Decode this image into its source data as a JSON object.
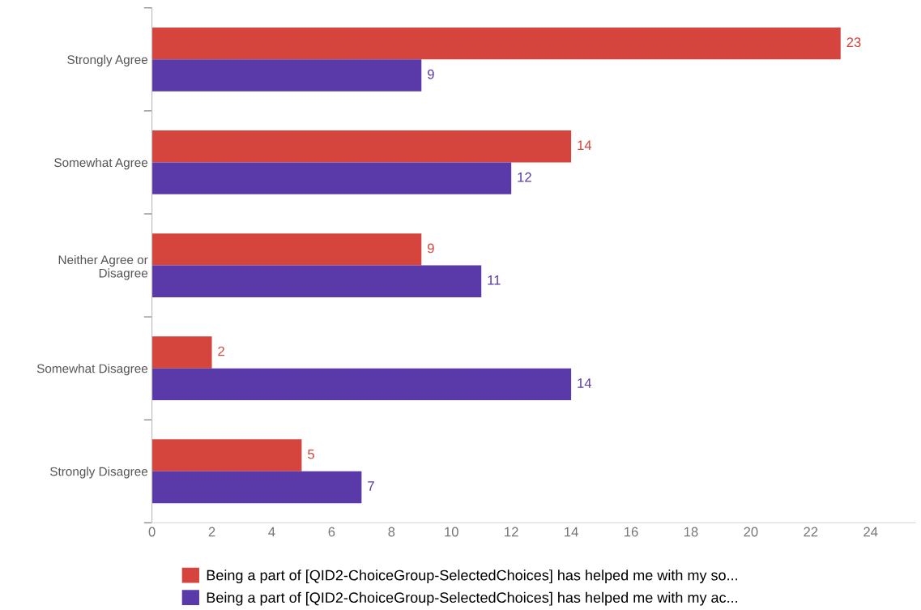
{
  "chart_data": {
    "type": "bar",
    "orientation": "horizontal",
    "categories": [
      "Strongly Agree",
      "Somewhat Agree",
      "Neither Agree or\nDisagree",
      "Somewhat Disagree",
      "Strongly Disagree"
    ],
    "series": [
      {
        "name": "Being a part of [QID2-ChoiceGroup-SelectedChoices] has helped me with my so...",
        "color": "#d5453d",
        "values": [
          23,
          14,
          9,
          2,
          5
        ]
      },
      {
        "name": "Being a part of [QID2-ChoiceGroup-SelectedChoices] has helped me with my ac...",
        "color": "#5a3aa8",
        "values": [
          9,
          12,
          11,
          14,
          7
        ]
      }
    ],
    "xlim": [
      0,
      25.5
    ],
    "xticks": [
      0,
      2,
      4,
      6,
      8,
      10,
      12,
      14,
      16,
      18,
      20,
      22,
      24
    ],
    "data_labels": true,
    "legend": "bottom",
    "grid": false
  }
}
